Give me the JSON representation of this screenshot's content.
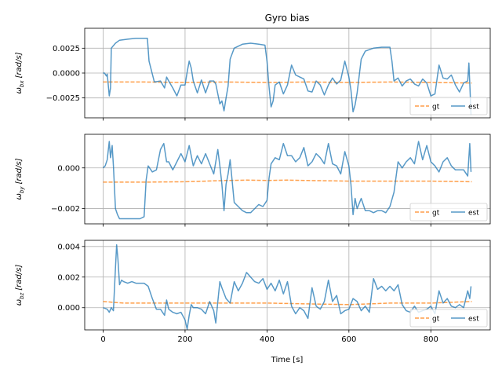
{
  "chart_data": {
    "type": "line",
    "title": "Gyro bias",
    "xlabel": "Time [s]",
    "xlim": [
      -45,
      945
    ],
    "xticks": [
      0,
      200,
      400,
      600,
      800
    ],
    "x_tick_labels": [
      "0",
      "200",
      "400",
      "600",
      "800"
    ],
    "grid": true,
    "legend_placement": "lower-right",
    "colors": {
      "gt": "#ff7f0e",
      "est": "#1f77b4"
    },
    "subplots": [
      {
        "id": "bx",
        "ylabel_main": "ω",
        "ylabel_sub": "bx",
        "ylabel_unit": "[rad/s]",
        "ylim": [
          -0.0045,
          0.0045
        ],
        "yticks": [
          -0.0025,
          0,
          0.0025
        ],
        "y_tick_labels": [
          "−0.0025",
          "0.0000",
          "0.0025"
        ],
        "series": [
          {
            "name": "gt",
            "style": "dashed",
            "x": [
              0,
              100,
              200,
              300,
              400,
              500,
              600,
              700,
              800,
              900
            ],
            "y": [
              -0.0009,
              -0.0009,
              -0.00095,
              -0.0009,
              -0.00095,
              -0.0009,
              -0.00095,
              -0.0009,
              -0.00095,
              -0.001
            ]
          },
          {
            "name": "est",
            "style": "solid",
            "x": [
              0,
              3,
              5,
              8,
              10,
              12,
              15,
              18,
              20,
              30,
              40,
              60,
              80,
              100,
              108,
              112,
              125,
              140,
              150,
              155,
              160,
              170,
              180,
              190,
              200,
              205,
              210,
              215,
              220,
              230,
              240,
              250,
              260,
              270,
              275,
              280,
              285,
              290,
              295,
              300,
              305,
              310,
              320,
              340,
              360,
              380,
              395,
              400,
              405,
              410,
              415,
              420,
              430,
              440,
              450,
              460,
              470,
              480,
              490,
              500,
              510,
              520,
              530,
              540,
              550,
              560,
              570,
              580,
              590,
              600,
              605,
              610,
              615,
              620,
              630,
              640,
              660,
              680,
              700,
              705,
              710,
              720,
              730,
              740,
              750,
              760,
              770,
              780,
              790,
              800,
              810,
              820,
              830,
              840,
              850,
              860,
              870,
              880,
              890,
              893,
              895,
              898
            ],
            "y": [
              0.0,
              0.0,
              -0.0001,
              -0.0003,
              -0.0001,
              -0.001,
              -0.0023,
              -0.0015,
              0.0025,
              0.003,
              0.0033,
              0.0034,
              0.0035,
              0.0035,
              0.0035,
              0.0012,
              -0.0009,
              -0.0008,
              -0.0015,
              -0.0004,
              -0.0008,
              -0.0015,
              -0.0023,
              -0.0012,
              -0.0012,
              0.0001,
              0.0012,
              0.0005,
              -0.0008,
              -0.002,
              -0.0007,
              -0.002,
              -0.0008,
              -0.0008,
              -0.0011,
              -0.0021,
              -0.0031,
              -0.0028,
              -0.0038,
              -0.0025,
              -0.0013,
              0.0014,
              0.0025,
              0.0029,
              0.003,
              0.0029,
              0.0028,
              0.0012,
              -0.0014,
              -0.0034,
              -0.0028,
              -0.0012,
              -0.0009,
              -0.0021,
              -0.0012,
              0.0008,
              -0.0002,
              -0.0004,
              -0.0006,
              -0.0018,
              -0.0019,
              -0.0008,
              -0.0012,
              -0.0022,
              -0.0012,
              -0.0005,
              -0.0011,
              -0.0007,
              0.0012,
              -0.0004,
              -0.0017,
              -0.0039,
              -0.0032,
              -0.002,
              0.0014,
              0.0022,
              0.0025,
              0.0026,
              0.0026,
              0.0012,
              -0.0008,
              -0.0005,
              -0.0013,
              -0.0008,
              -0.0006,
              -0.0011,
              -0.0013,
              -0.0006,
              -0.001,
              -0.0023,
              -0.0021,
              0.0008,
              -0.0005,
              -0.0006,
              -0.0002,
              -0.0012,
              -0.0019,
              -0.001,
              -0.0008,
              0.001,
              -0.001,
              -0.0042
            ]
          }
        ]
      },
      {
        "id": "by",
        "ylabel_main": "ω",
        "ylabel_sub": "by",
        "ylabel_unit": "[rad/s]",
        "ylim": [
          -0.00275,
          0.00165
        ],
        "yticks": [
          -0.002,
          0
        ],
        "y_tick_labels": [
          "−0.002",
          "0.000"
        ],
        "series": [
          {
            "name": "gt",
            "style": "dashed",
            "x": [
              0,
              100,
              200,
              300,
              350,
              400,
              450,
              500,
              600,
              700,
              800,
              900
            ],
            "y": [
              -0.0007,
              -0.0007,
              -0.00068,
              -0.00062,
              -0.0006,
              -0.00062,
              -0.0006,
              -0.00062,
              -0.00065,
              -0.00065,
              -0.00065,
              -0.00068
            ]
          },
          {
            "name": "est",
            "style": "solid",
            "x": [
              0,
              5,
              10,
              15,
              18,
              22,
              25,
              30,
              35,
              40,
              50,
              60,
              70,
              80,
              90,
              100,
              105,
              110,
              120,
              130,
              140,
              148,
              155,
              160,
              170,
              180,
              190,
              200,
              210,
              220,
              230,
              240,
              250,
              260,
              270,
              280,
              285,
              290,
              295,
              300,
              305,
              310,
              320,
              330,
              340,
              350,
              360,
              370,
              380,
              390,
              400,
              405,
              410,
              420,
              430,
              440,
              450,
              460,
              470,
              480,
              490,
              500,
              510,
              520,
              530,
              540,
              550,
              560,
              570,
              580,
              590,
              600,
              605,
              610,
              615,
              620,
              630,
              640,
              650,
              660,
              670,
              680,
              690,
              700,
              710,
              720,
              730,
              740,
              750,
              760,
              770,
              780,
              790,
              800,
              810,
              820,
              830,
              840,
              850,
              860,
              870,
              880,
              890,
              895,
              898
            ],
            "y": [
              0.0,
              0.0001,
              0.0004,
              0.0013,
              0.0005,
              0.0011,
              0.0001,
              -0.002,
              -0.0023,
              -0.0025,
              -0.0025,
              -0.0025,
              -0.0025,
              -0.0025,
              -0.0025,
              -0.0024,
              -0.0006,
              0.0001,
              -0.0002,
              -0.0001,
              0.0009,
              0.0012,
              0.0003,
              0.0003,
              -0.0001,
              0.0003,
              0.0007,
              0.0003,
              0.0011,
              0.0001,
              0.0006,
              0.0002,
              0.0007,
              0.0002,
              -0.0003,
              0.0009,
              0.0001,
              -0.0008,
              -0.0021,
              -0.0008,
              -0.0003,
              0.0004,
              -0.0017,
              -0.0019,
              -0.0021,
              -0.0022,
              -0.0022,
              -0.002,
              -0.0018,
              -0.0019,
              -0.0016,
              -0.0005,
              0.0002,
              0.0005,
              0.0004,
              0.0012,
              0.0006,
              0.0006,
              0.0003,
              0.0005,
              0.001,
              0.0001,
              0.0003,
              0.0007,
              0.0005,
              0.0002,
              0.0012,
              0.0002,
              0.0001,
              -0.0003,
              0.0008,
              0.0001,
              -0.0008,
              -0.0023,
              -0.0015,
              -0.002,
              -0.0015,
              -0.0021,
              -0.0021,
              -0.0022,
              -0.0021,
              -0.0021,
              -0.0022,
              -0.0019,
              -0.0012,
              0.0003,
              0.0,
              0.0003,
              0.0005,
              0.0002,
              0.0013,
              0.0004,
              0.0011,
              0.0003,
              0.0001,
              -0.0002,
              0.0003,
              0.0005,
              0.0001,
              -0.0001,
              -0.0001,
              -0.0001,
              -0.0004,
              0.0012,
              -0.0002
            ]
          }
        ]
      },
      {
        "id": "bz",
        "ylabel_main": "ω",
        "ylabel_sub": "bz",
        "ylabel_unit": "[rad/s]",
        "ylim": [
          -0.00145,
          0.0044
        ],
        "yticks": [
          0,
          0.002,
          0.004
        ],
        "y_tick_labels": [
          "0.000",
          "0.002",
          "0.004"
        ],
        "series": [
          {
            "name": "gt",
            "style": "dashed",
            "x": [
              0,
              50,
              100,
              200,
              300,
              400,
              500,
              600,
              650,
              700,
              800,
              900
            ],
            "y": [
              0.0004,
              0.0003,
              0.0003,
              0.0003,
              0.0003,
              0.0003,
              0.00025,
              0.0002,
              0.00025,
              0.0003,
              0.0003,
              0.0004
            ]
          },
          {
            "name": "est",
            "style": "solid",
            "x": [
              0,
              10,
              15,
              20,
              25,
              30,
              33,
              36,
              40,
              45,
              50,
              60,
              70,
              80,
              90,
              100,
              110,
              120,
              130,
              140,
              150,
              155,
              160,
              170,
              180,
              190,
              200,
              205,
              210,
              215,
              220,
              230,
              240,
              250,
              260,
              270,
              275,
              280,
              285,
              290,
              300,
              310,
              320,
              330,
              340,
              350,
              360,
              370,
              380,
              390,
              400,
              410,
              420,
              430,
              440,
              450,
              460,
              470,
              480,
              490,
              500,
              510,
              520,
              530,
              540,
              550,
              560,
              570,
              580,
              590,
              600,
              610,
              620,
              630,
              640,
              650,
              660,
              670,
              680,
              690,
              700,
              710,
              720,
              730,
              740,
              750,
              760,
              770,
              780,
              790,
              800,
              810,
              820,
              830,
              840,
              850,
              860,
              870,
              880,
              890,
              895,
              898
            ],
            "y": [
              0.0,
              -0.0001,
              -0.0003,
              0.0,
              -0.0002,
              0.0026,
              0.0041,
              0.0032,
              0.0015,
              0.0018,
              0.0017,
              0.0016,
              0.0017,
              0.0016,
              0.0016,
              0.0016,
              0.0014,
              0.0006,
              -0.0001,
              -0.0001,
              -0.0005,
              0.0005,
              -0.0001,
              -0.0003,
              -0.0004,
              -0.0003,
              -0.0008,
              -0.0014,
              -0.0005,
              0.0002,
              0.0,
              0.0,
              -0.0001,
              -0.0004,
              0.0004,
              -0.0002,
              -0.001,
              0.0004,
              0.0017,
              0.0013,
              0.0006,
              0.0003,
              0.0017,
              0.0011,
              0.0016,
              0.0023,
              0.002,
              0.0017,
              0.0016,
              0.0019,
              0.0012,
              0.0016,
              0.0011,
              0.0018,
              0.0009,
              0.0017,
              0.0001,
              -0.0004,
              0.0,
              -0.0002,
              -0.0007,
              0.0013,
              0.0001,
              -0.0001,
              0.0004,
              0.0018,
              0.0004,
              0.0008,
              -0.0004,
              -0.0002,
              -0.0001,
              0.0006,
              0.0004,
              -0.0002,
              0.0001,
              -0.0003,
              0.0019,
              0.0012,
              0.0014,
              0.0011,
              0.0014,
              0.0011,
              0.0015,
              0.0002,
              -0.0002,
              -0.0003,
              0.0001,
              -0.0003,
              -0.0002,
              -0.0001,
              0.0001,
              -0.0004,
              0.0011,
              0.0003,
              0.0006,
              0.0001,
              0.0,
              0.0002,
              0.0,
              0.0011,
              0.0006,
              0.0014
            ]
          }
        ]
      }
    ]
  }
}
